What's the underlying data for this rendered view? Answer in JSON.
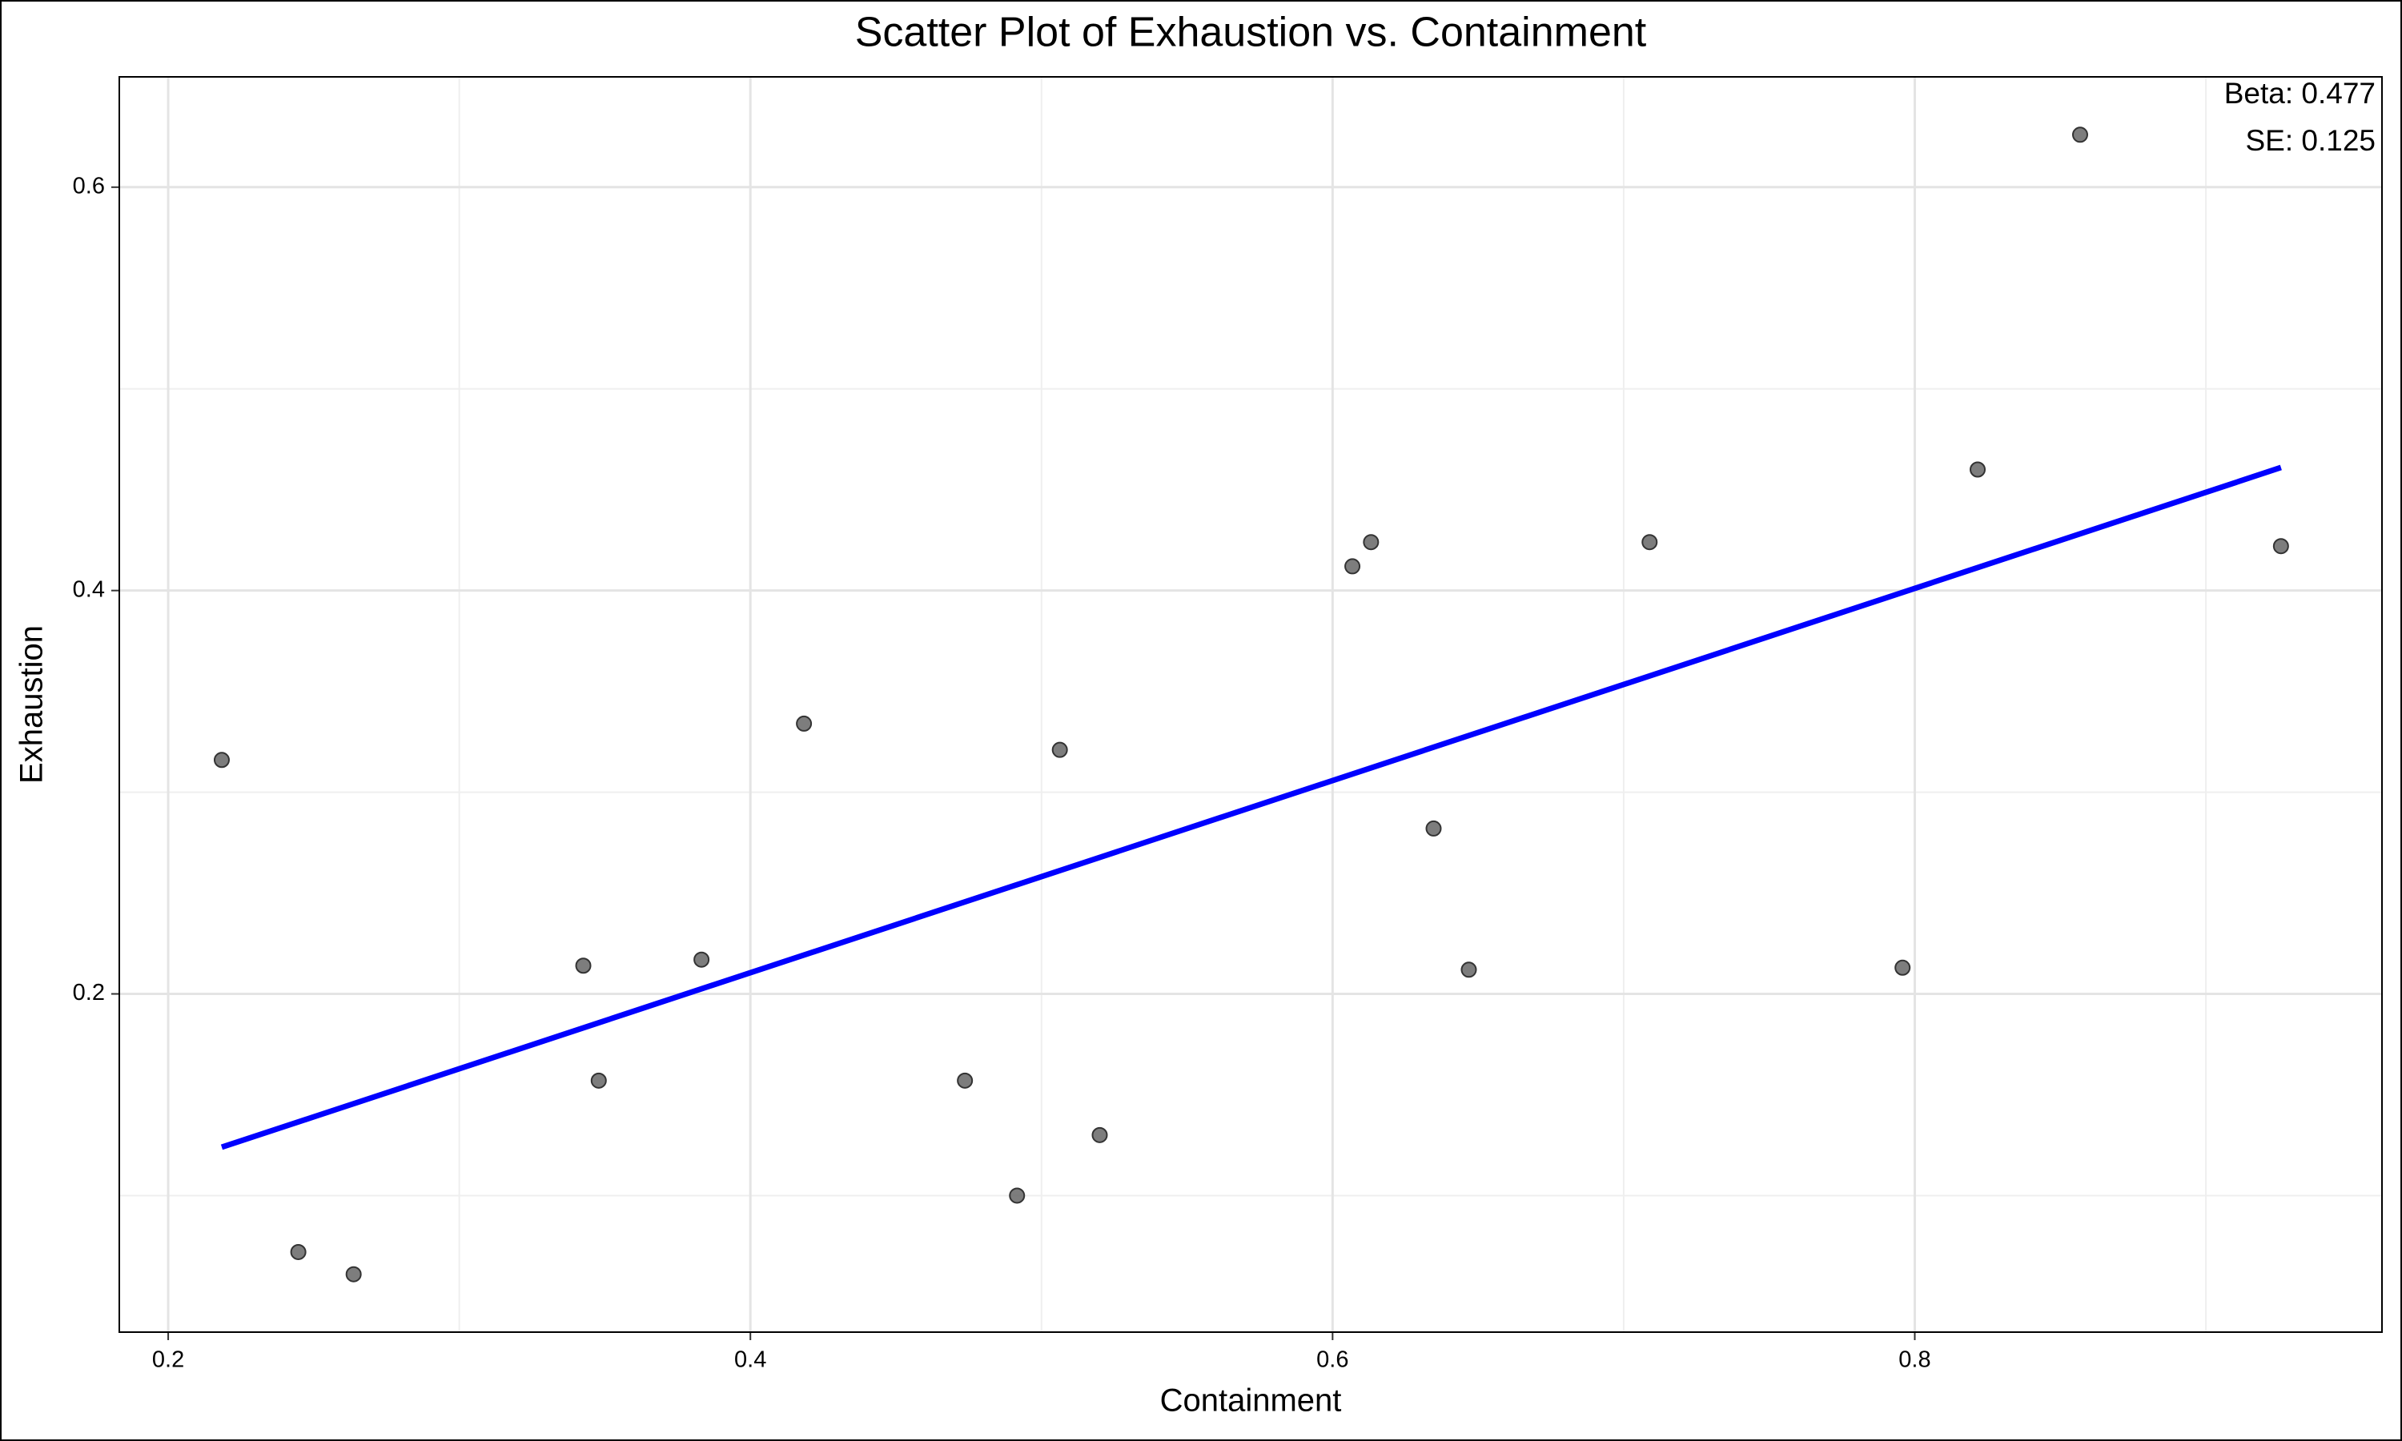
{
  "chart_data": {
    "type": "scatter",
    "title": "Scatter Plot of Exhaustion vs. Containment",
    "x_label": "Containment",
    "y_label": "Exhaustion",
    "x": [
      0.2184,
      0.2447,
      0.2637,
      0.3426,
      0.3479,
      0.3832,
      0.4184,
      0.4737,
      0.4916,
      0.5063,
      0.52,
      0.6068,
      0.6132,
      0.6347,
      0.6468,
      0.7089,
      0.7958,
      0.8216,
      0.8568,
      0.9258
    ],
    "values": [
      0.316,
      0.072,
      0.061,
      0.214,
      0.157,
      0.217,
      0.334,
      0.157,
      0.1,
      0.321,
      0.13,
      0.412,
      0.424,
      0.282,
      0.212,
      0.424,
      0.213,
      0.46,
      0.626,
      0.422
    ],
    "color": "#666666",
    "fit_line": {
      "x": [
        0.2184,
        0.9258
      ],
      "y": [
        0.124,
        0.461
      ],
      "color": "#0000ff"
    },
    "annotations": [
      "Beta: 0.477",
      "SE: 0.125"
    ],
    "xlim": [
      0.1832,
      0.9605
    ],
    "ylim": [
      0.0323,
      0.6547
    ],
    "xticks": [
      0.2,
      0.4,
      0.6,
      0.8
    ],
    "yticks": [
      0.2,
      0.4,
      0.6
    ],
    "x_minor_grid": [
      0.3,
      0.5,
      0.7,
      0.9
    ],
    "y_minor_grid": [
      0.1,
      0.3,
      0.5
    ],
    "grid": true
  }
}
